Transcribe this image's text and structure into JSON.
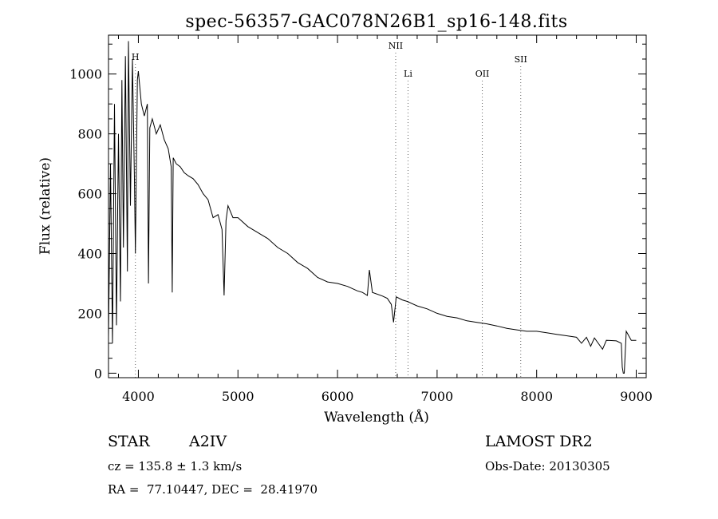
{
  "chart_data": {
    "type": "line",
    "title": "spec-56357-GAC078N26B1_sp16-148.fits",
    "xlabel": "Wavelength (Å)",
    "ylabel": "Flux (relative)",
    "xlim": [
      3700,
      9100
    ],
    "ylim": [
      -15,
      1130
    ],
    "xticks": [
      4000,
      5000,
      6000,
      7000,
      8000,
      9000
    ],
    "yticks": [
      0,
      200,
      400,
      600,
      800,
      1000
    ],
    "grid": false,
    "series": [
      {
        "x": [
          3700,
          3720,
          3740,
          3760,
          3780,
          3800,
          3820,
          3835,
          3850,
          3870,
          3890,
          3900,
          3920,
          3940,
          3960,
          3970,
          3990,
          4000,
          4030,
          4060,
          4090,
          4101,
          4115,
          4140,
          4180,
          4220,
          4260,
          4300,
          4330,
          4340,
          4350,
          4380,
          4420,
          4460,
          4500,
          4550,
          4600,
          4650,
          4700,
          4750,
          4800,
          4840,
          4861,
          4880,
          4900,
          4950,
          5000,
          5100,
          5200,
          5300,
          5400,
          5500,
          5600,
          5700,
          5800,
          5900,
          6000,
          6100,
          6200,
          6250,
          6300,
          6320,
          6350,
          6450,
          6500,
          6540,
          6563,
          6590,
          6650,
          6700,
          6800,
          6900,
          7000,
          7100,
          7200,
          7300,
          7400,
          7500,
          7600,
          7700,
          7800,
          7900,
          8000,
          8100,
          8200,
          8300,
          8400,
          8450,
          8500,
          8542,
          8580,
          8662,
          8700,
          8800,
          8850,
          8860,
          8870,
          8880,
          8900,
          8950,
          9000
        ],
        "y": [
          120,
          700,
          100,
          900,
          160,
          800,
          240,
          980,
          420,
          1060,
          340,
          1110,
          560,
          1050,
          650,
          400,
          980,
          1010,
          900,
          860,
          900,
          300,
          820,
          850,
          800,
          830,
          780,
          750,
          690,
          270,
          720,
          700,
          690,
          670,
          660,
          650,
          630,
          600,
          580,
          520,
          530,
          480,
          260,
          510,
          560,
          520,
          520,
          490,
          470,
          450,
          420,
          400,
          370,
          350,
          320,
          305,
          300,
          290,
          275,
          270,
          260,
          345,
          270,
          258,
          250,
          230,
          170,
          255,
          245,
          240,
          225,
          215,
          200,
          190,
          185,
          175,
          170,
          165,
          158,
          150,
          145,
          140,
          140,
          135,
          130,
          125,
          120,
          100,
          120,
          90,
          118,
          80,
          110,
          108,
          100,
          20,
          0,
          0,
          140,
          110,
          110
        ]
      }
    ],
    "line_markers": [
      {
        "label": "H",
        "x": 3970
      },
      {
        "label": "NII",
        "x": 6584
      },
      {
        "label": "Li",
        "x": 6708
      },
      {
        "label": "OII",
        "x": 7454
      },
      {
        "label": "SII",
        "x": 7840
      }
    ]
  },
  "info": {
    "object_type": "STAR",
    "subclass": "A2IV",
    "survey": "LAMOST DR2",
    "cz_line": "cz = 135.8 ± 1.3 km/s",
    "obs_date_line": "Obs-Date: 20130305",
    "coords_line": "RA =  77.10447, DEC =  28.41970"
  }
}
